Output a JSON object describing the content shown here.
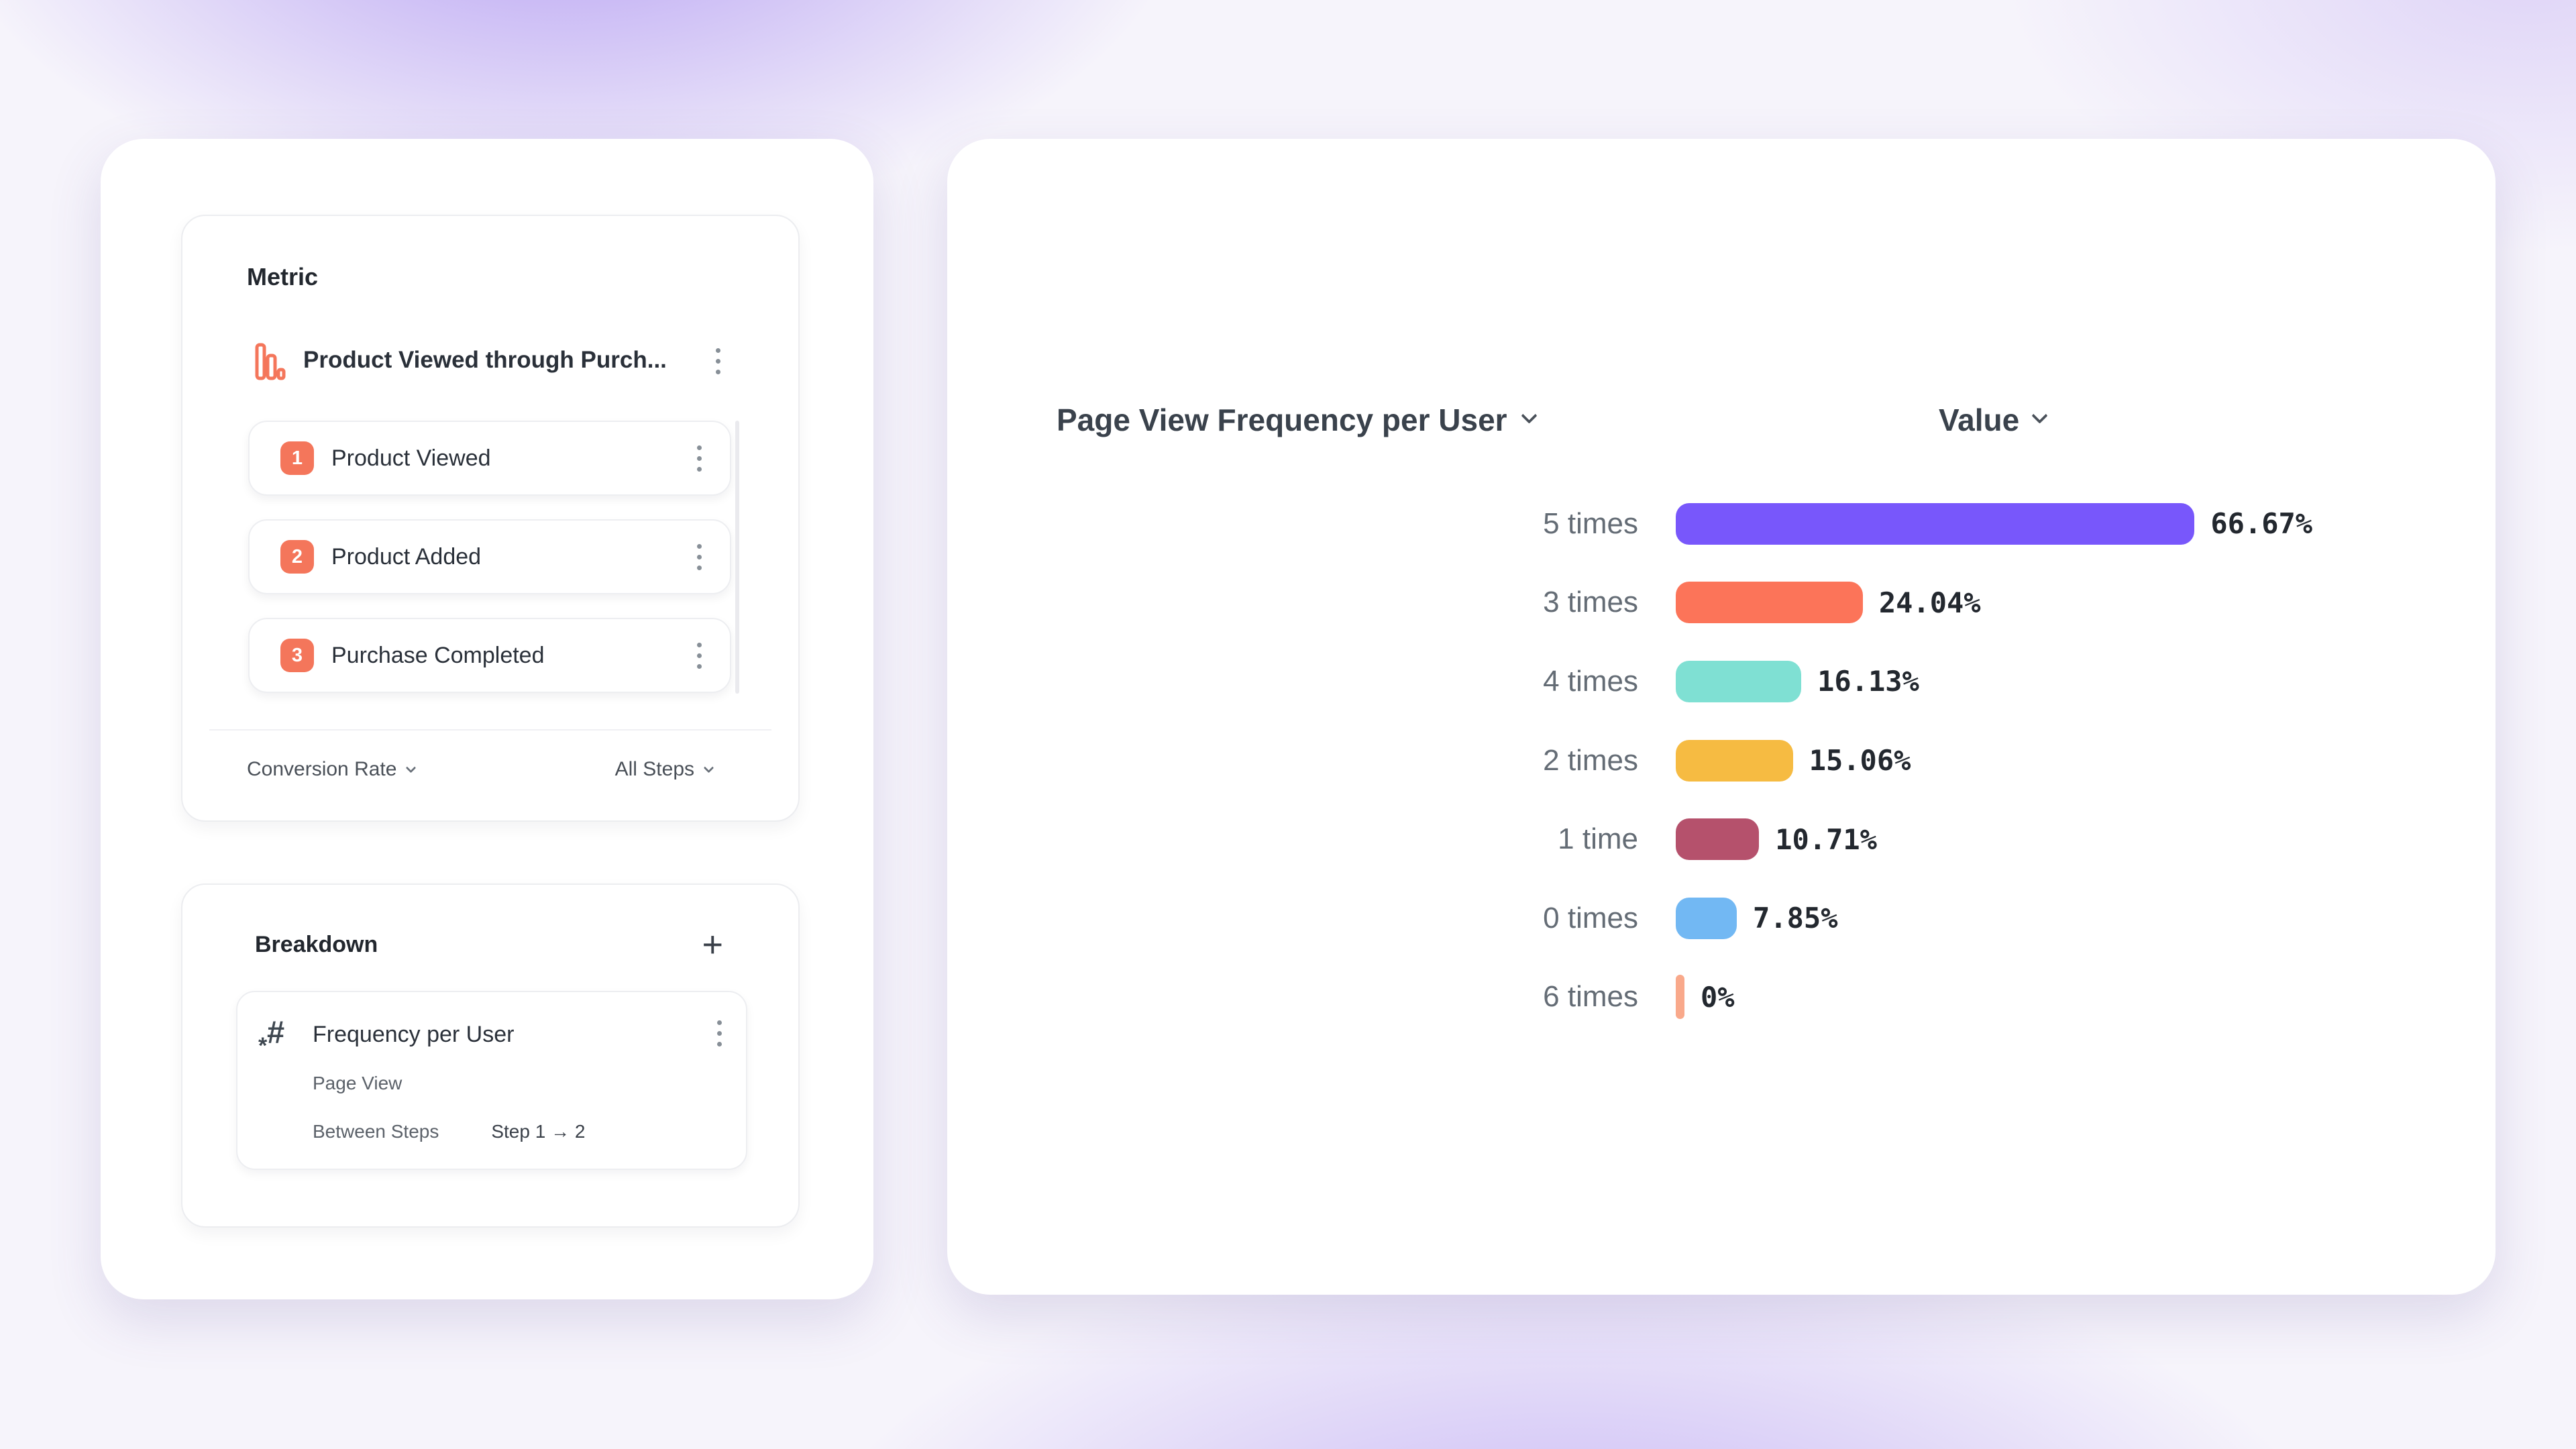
{
  "theme": {
    "accent_orange": "#F4765B",
    "text_dark": "#22272E",
    "text_gray": "#646C75"
  },
  "metric_panel": {
    "title": "Metric",
    "funnel": {
      "icon": "funnel-chart-icon",
      "name": "Product Viewed through Purch...",
      "steps": [
        {
          "number": "1",
          "label": "Product Viewed"
        },
        {
          "number": "2",
          "label": "Product Added"
        },
        {
          "number": "3",
          "label": "Purchase Completed"
        }
      ]
    },
    "conversion_dropdown": "Conversion Rate",
    "steps_dropdown": "All Steps"
  },
  "breakdown_panel": {
    "title": "Breakdown",
    "add_label": "+",
    "item": {
      "icon": "numeric-property-icon",
      "title": "Frequency per User",
      "event": "Page View",
      "rows_label": "Between Steps",
      "rows_value": "Step 1 → 2"
    }
  },
  "chart_header": {
    "title": "Page View Frequency per User",
    "value_label": "Value"
  },
  "chart_data": {
    "type": "bar",
    "orientation": "horizontal",
    "title": "Page View Frequency per User",
    "value_column_label": "Value",
    "categories": [
      "5 times",
      "3 times",
      "4 times",
      "2 times",
      "1 time",
      "0 times",
      "6 times"
    ],
    "values": [
      66.67,
      24.04,
      16.13,
      15.06,
      10.71,
      7.85,
      0
    ],
    "value_labels": [
      "66.67%",
      "24.04%",
      "16.13%",
      "15.06%",
      "10.71%",
      "7.85%",
      "0%"
    ],
    "bar_colors": [
      "#7857FB",
      "#FC7459",
      "#7FE0D3",
      "#F6BB42",
      "#B5516C",
      "#72B8F3",
      "#F9A98B"
    ],
    "xlim": [
      0,
      100
    ],
    "unit": "percent of users",
    "legend": "none",
    "grid": "off"
  }
}
